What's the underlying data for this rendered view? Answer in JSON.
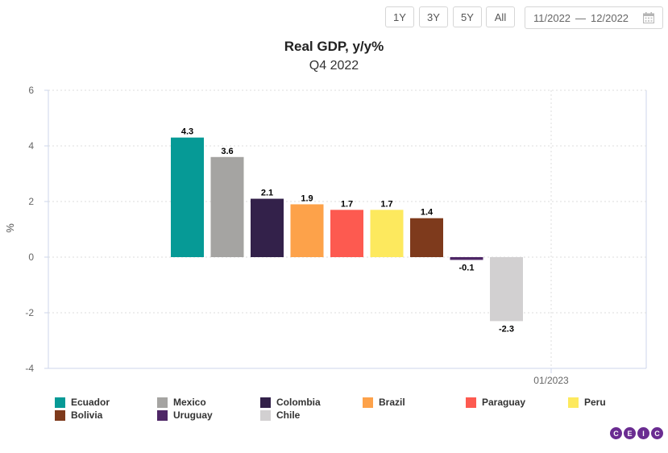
{
  "toolbar": {
    "buttons": [
      "1Y",
      "3Y",
      "5Y",
      "All"
    ],
    "date_from": "11/2022",
    "date_sep": "—",
    "date_to": "12/2022"
  },
  "logo": [
    "C",
    "E",
    "I",
    "C"
  ],
  "chart_data": {
    "type": "bar",
    "title": "Real GDP, y/y%",
    "subtitle": "Q4 2022",
    "ylabel": "%",
    "ylim": [
      -4,
      6
    ],
    "yticks": [
      6,
      4,
      2,
      0,
      -2,
      -4
    ],
    "xtick_label": "01/2023",
    "grid": true,
    "legend_position": "bottom",
    "series": [
      {
        "name": "Ecuador",
        "value": 4.3,
        "label": "4.3",
        "color": "#069a96"
      },
      {
        "name": "Mexico",
        "value": 3.6,
        "label": "3.6",
        "color": "#a5a4a2"
      },
      {
        "name": "Colombia",
        "value": 2.1,
        "label": "2.1",
        "color": "#33214a"
      },
      {
        "name": "Brazil",
        "value": 1.9,
        "label": "1.9",
        "color": "#fda24a"
      },
      {
        "name": "Paraguay",
        "value": 1.7,
        "label": "1.7",
        "color": "#fd5a50"
      },
      {
        "name": "Peru",
        "value": 1.7,
        "label": "1.7",
        "color": "#fde95e"
      },
      {
        "name": "Bolivia",
        "value": 1.4,
        "label": "1.4",
        "color": "#7e3a1c"
      },
      {
        "name": "Uruguay",
        "value": -0.1,
        "label": "-0.1",
        "color": "#4e2766"
      },
      {
        "name": "Chile",
        "value": -2.3,
        "label": "-2.3",
        "color": "#d2d0d1"
      }
    ]
  }
}
